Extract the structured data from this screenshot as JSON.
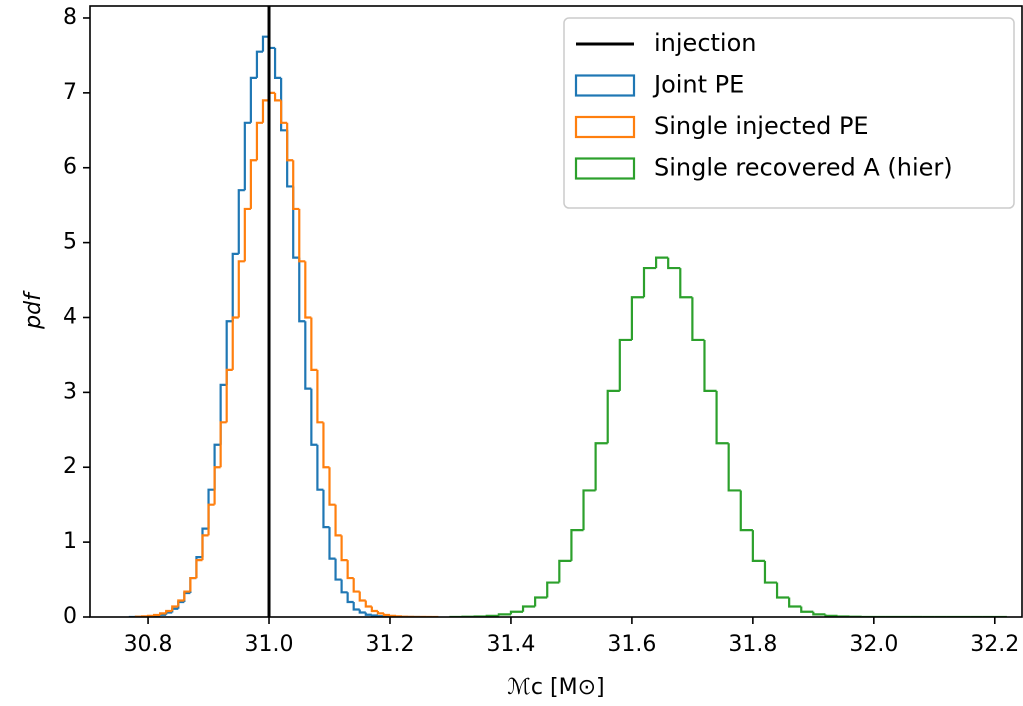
{
  "chart_data": {
    "type": "histogram",
    "xlabel": "ℳc [M⊙]",
    "ylabel": "pdf",
    "xlim": [
      30.704,
      32.245
    ],
    "ylim": [
      0,
      8.16
    ],
    "xticks": [
      30.8,
      {
        "value": 31,
        "label": "31.0"
      },
      31.2,
      31.4,
      31.6,
      31.8,
      {
        "value": 32,
        "label": "32.0"
      },
      32.2
    ],
    "yticks": [
      0,
      1,
      2,
      3,
      4,
      5,
      6,
      7,
      8
    ],
    "legend": "upper right",
    "vline": {
      "name": "injection",
      "x": 31,
      "color": "#000000"
    },
    "series": [
      {
        "name": "Joint PE",
        "color": "#1f77b4",
        "bins": [
          30.77,
          30.78,
          30.79,
          30.8,
          30.81,
          30.82,
          30.83,
          30.84,
          30.85,
          30.86,
          30.87,
          30.88,
          30.89,
          30.9,
          30.91,
          30.92,
          30.93,
          30.94,
          30.95,
          30.96,
          30.97,
          30.98,
          30.99,
          31.0,
          31.01,
          31.02,
          31.03,
          31.04,
          31.05,
          31.06,
          31.07,
          31.08,
          31.09,
          31.1,
          31.11,
          31.12,
          31.13,
          31.14,
          31.15,
          31.16,
          31.17,
          31.18,
          31.19,
          31.2,
          31.21,
          31.22,
          31.23,
          31.24,
          31.25
        ],
        "values": [
          0.001,
          0.002,
          0.004,
          0.01,
          0.02,
          0.03,
          0.06,
          0.11,
          0.2,
          0.32,
          0.52,
          0.8,
          1.18,
          1.7,
          2.3,
          3.1,
          3.95,
          4.85,
          5.7,
          6.6,
          7.2,
          7.55,
          7.75,
          7.6,
          7.2,
          6.5,
          5.75,
          4.8,
          3.95,
          3.05,
          2.3,
          1.7,
          1.2,
          0.78,
          0.5,
          0.33,
          0.2,
          0.1,
          0.06,
          0.03,
          0.02,
          0.01,
          0.004,
          0.002,
          0.001,
          0,
          0,
          0
        ]
      },
      {
        "name": "Single injected PE",
        "color": "#ff7f0e",
        "bins": [
          30.78,
          30.79,
          30.8,
          30.81,
          30.82,
          30.83,
          30.84,
          30.85,
          30.86,
          30.87,
          30.88,
          30.89,
          30.9,
          30.91,
          30.92,
          30.93,
          30.94,
          30.95,
          30.96,
          30.97,
          30.98,
          30.99,
          31.0,
          31.01,
          31.02,
          31.03,
          31.04,
          31.05,
          31.06,
          31.07,
          31.08,
          31.09,
          31.1,
          31.11,
          31.12,
          31.13,
          31.14,
          31.15,
          31.16,
          31.17,
          31.18,
          31.19,
          31.2,
          31.21,
          31.22,
          31.23,
          31.24,
          31.25,
          31.26,
          31.27,
          31.28
        ],
        "values": [
          0.004,
          0.008,
          0.015,
          0.027,
          0.048,
          0.08,
          0.14,
          0.22,
          0.34,
          0.52,
          0.76,
          1.09,
          1.5,
          2.0,
          2.6,
          3.3,
          4.0,
          4.75,
          5.45,
          6.1,
          6.6,
          6.9,
          7.0,
          6.9,
          6.6,
          6.1,
          5.45,
          4.75,
          4.0,
          3.3,
          2.6,
          2.0,
          1.5,
          1.09,
          0.76,
          0.52,
          0.34,
          0.22,
          0.14,
          0.08,
          0.048,
          0.027,
          0.015,
          0.008,
          0.004,
          0.002,
          0.001,
          0.001,
          0,
          0
        ]
      },
      {
        "name": "Single recovered A (hier)",
        "color": "#2ca02c",
        "bins": [
          31.3,
          31.32,
          31.34,
          31.36,
          31.38,
          31.4,
          31.42,
          31.44,
          31.46,
          31.48,
          31.5,
          31.52,
          31.54,
          31.56,
          31.58,
          31.6,
          31.62,
          31.64,
          31.66,
          31.68,
          31.7,
          31.72,
          31.74,
          31.76,
          31.78,
          31.8,
          31.82,
          31.84,
          31.86,
          31.88,
          31.9,
          31.92,
          31.94,
          31.96,
          31.98,
          32.0,
          32.02,
          32.04,
          32.06,
          32.08,
          32.1,
          32.12,
          32.14,
          32.16,
          32.18,
          32.2,
          32.22
        ],
        "values": [
          0.001,
          0.003,
          0.007,
          0.016,
          0.035,
          0.07,
          0.14,
          0.26,
          0.46,
          0.75,
          1.16,
          1.69,
          2.32,
          3.02,
          3.7,
          4.27,
          4.66,
          4.8,
          4.66,
          4.27,
          3.7,
          3.02,
          2.32,
          1.69,
          1.16,
          0.75,
          0.46,
          0.26,
          0.14,
          0.07,
          0.035,
          0.016,
          0.007,
          0.003,
          0.001,
          0.0004,
          0.0002,
          0.0001,
          0,
          0,
          0,
          0,
          0,
          0,
          0,
          0
        ]
      }
    ]
  }
}
